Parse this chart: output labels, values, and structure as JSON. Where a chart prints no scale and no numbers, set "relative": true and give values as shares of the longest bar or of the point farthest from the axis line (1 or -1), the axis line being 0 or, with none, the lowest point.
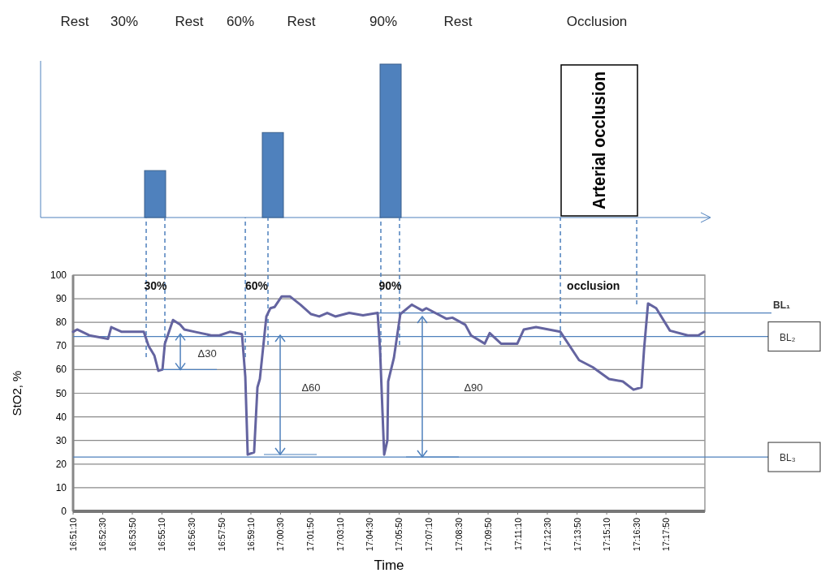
{
  "chart_data": [
    {
      "type": "bar",
      "relative": true,
      "categories": [
        null,
        null,
        null
      ],
      "values": [
        0.306,
        0.554,
        1
      ],
      "color": "#4f81bd",
      "annotations": [
        "Rest",
        "30%",
        "Rest",
        "60%",
        "Rest",
        "90%",
        "Rest",
        "Occlusion",
        "Arterial occlusion"
      ]
    },
    {
      "type": "line",
      "xlabel": "Time",
      "ylabel": "StO2, %",
      "grid": "y",
      "marker": "none",
      "line_style": "solid",
      "xlim": [
        16.8528,
        17.3264
      ],
      "ylim": [
        0,
        100
      ],
      "yticks": [
        0,
        10,
        20,
        30,
        40,
        50,
        60,
        70,
        80,
        90,
        100
      ],
      "xticks": [
        {
          "value": 16.8528,
          "label": "16:51:10"
        },
        {
          "value": 16.875,
          "label": "16:52:30"
        },
        {
          "value": 16.8972,
          "label": "16:53:50"
        },
        {
          "value": 16.9194,
          "label": "16:55:10"
        },
        {
          "value": 16.9417,
          "label": "16:56:30"
        },
        {
          "value": 16.9639,
          "label": "16:57:50"
        },
        {
          "value": 16.9861,
          "label": "16:59:10"
        },
        {
          "value": 17.0083,
          "label": "17:00:30"
        },
        {
          "value": 17.0306,
          "label": "17:01:50"
        },
        {
          "value": 17.0528,
          "label": "17:03:10"
        },
        {
          "value": 17.075,
          "label": "17:04:30"
        },
        {
          "value": 17.0972,
          "label": "17:05:50"
        },
        {
          "value": 17.1194,
          "label": "17:07:10"
        },
        {
          "value": 17.1417,
          "label": "17:08:30"
        },
        {
          "value": 17.1639,
          "label": "17:09:50"
        },
        {
          "value": 17.1861,
          "label": "17:11:10"
        },
        {
          "value": 17.2083,
          "label": "17:12:30"
        },
        {
          "value": 17.2306,
          "label": "17:13:50"
        },
        {
          "value": 17.2528,
          "label": "17:15:10"
        },
        {
          "value": 17.275,
          "label": "17:16:30"
        },
        {
          "value": 17.2972,
          "label": "17:17:50"
        }
      ],
      "series": [
        {
          "color": "#6464a0",
          "x": [
            16.8528,
            16.8558,
            16.865,
            16.879,
            16.8814,
            16.8893,
            16.9058,
            16.9094,
            16.9137,
            16.9167,
            16.9198,
            16.9216,
            16.9277,
            16.9331,
            16.9362,
            16.9441,
            16.9563,
            16.9624,
            16.9703,
            16.9794,
            16.9819,
            16.9837,
            16.9885,
            16.991,
            16.9928,
            16.9977,
            17.0007,
            17.0038,
            17.0092,
            17.0153,
            17.0232,
            17.0312,
            17.0373,
            17.0433,
            17.0494,
            17.0598,
            17.0701,
            17.0811,
            17.0829,
            17.086,
            17.0884,
            17.089,
            17.0933,
            17.0981,
            17.1067,
            17.1146,
            17.1176,
            17.1328,
            17.1371,
            17.1468,
            17.1511,
            17.1614,
            17.1651,
            17.1736,
            17.1858,
            17.1907,
            17.1998,
            17.2181,
            17.2321,
            17.2424,
            17.2546,
            17.2649,
            17.2729,
            17.2789,
            17.2808,
            17.2838,
            17.2899,
            17.3002,
            17.3136,
            17.3215,
            17.3258
          ],
          "values": [
            76,
            77,
            74.5,
            73,
            78,
            76,
            76,
            70,
            66,
            59.5,
            60,
            71,
            81,
            79,
            77,
            76,
            74.5,
            74.5,
            76,
            75,
            57,
            24,
            25,
            52.5,
            56,
            82.5,
            86,
            86.5,
            91,
            91,
            87.5,
            83.5,
            82.5,
            84,
            82.5,
            84,
            83,
            84,
            68.5,
            24,
            30,
            55,
            65,
            83.5,
            87.5,
            85,
            86,
            81.5,
            82,
            79,
            74.5,
            71,
            75.5,
            71,
            71,
            77,
            78,
            76,
            64,
            61,
            56,
            55,
            51.5,
            52.5,
            68.5,
            88,
            86,
            76.5,
            74.5,
            74.5,
            76
          ]
        }
      ],
      "ref_lines": [
        {
          "axis": "y",
          "value": 84,
          "label": "BL₁",
          "color": "#4f81bd"
        },
        {
          "axis": "y",
          "value": 74,
          "label": "BL₂",
          "color": "#4f81bd"
        },
        {
          "axis": "y",
          "value": 23,
          "label": "BL₃",
          "color": "#4f81bd"
        },
        {
          "axis": "x",
          "value": 16.9076,
          "label": null,
          "color": "#4f81bd",
          "line_style": "dashed"
        },
        {
          "axis": "x",
          "value": 16.9216,
          "label": null,
          "color": "#4f81bd",
          "line_style": "dashed"
        },
        {
          "axis": "x",
          "value": 16.9819,
          "label": null,
          "color": "#4f81bd",
          "line_style": "dashed"
        },
        {
          "axis": "x",
          "value": 16.9989,
          "label": null,
          "color": "#4f81bd",
          "line_style": "dashed"
        },
        {
          "axis": "x",
          "value": 17.0835,
          "label": null,
          "color": "#4f81bd",
          "line_style": "dashed"
        },
        {
          "axis": "x",
          "value": 17.0975,
          "label": null,
          "color": "#4f81bd",
          "line_style": "dashed"
        },
        {
          "axis": "x",
          "value": 17.2181,
          "label": null,
          "color": "#4f81bd",
          "line_style": "dashed"
        },
        {
          "axis": "x",
          "value": 17.2753,
          "label": null,
          "color": "#4f81bd",
          "line_style": "dashed"
        }
      ],
      "annotations": [
        "30%",
        "60%",
        "90%",
        "occlusion",
        {
          "text": "Δ30",
          "x": 16.9198,
          "y": 60
        },
        "Δ60",
        "Δ90"
      ]
    }
  ]
}
